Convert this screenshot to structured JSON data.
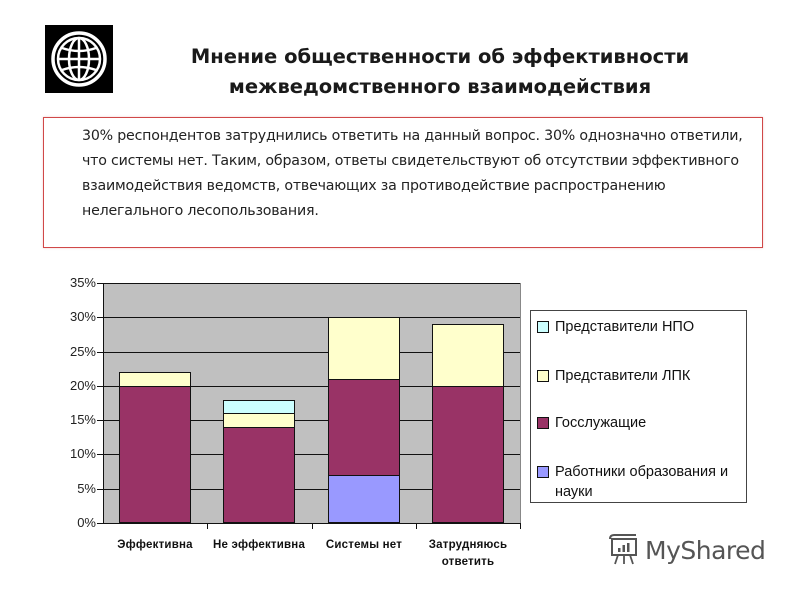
{
  "slide": {
    "title_line1": "Мнение общественности  об эффективности",
    "title_line2": "межведомственного взаимодействия",
    "body_text": "30% респондентов затруднились ответить на данный вопрос.  30% однозначно ответили, что системы нет. Таким, образом, ответы свидетельствуют об отсутствии эффективного взаимодействия ведомств, отвечающих за противодействие распространению нелегального лесопользования.",
    "logo_icon": "globe-icon",
    "watermark": "MyShared",
    "watermark_icon": "presentation-board-icon"
  },
  "colors": {
    "npo": "#ccffff",
    "lpk": "#ffffcc",
    "gos": "#993366",
    "edu": "#9999ff",
    "plot_bg": "#c0c0c0",
    "border_red": "#d04848"
  },
  "chart_data": {
    "type": "bar",
    "stacked": true,
    "title": "",
    "xlabel": "",
    "ylabel": "",
    "ylim": [
      0,
      35
    ],
    "yticks": [
      "0%",
      "5%",
      "10%",
      "15%",
      "20%",
      "25%",
      "30%",
      "35%"
    ],
    "grid": true,
    "legend_position": "right",
    "categories": [
      "Эффективна",
      "Не эффективна",
      "Системы нет",
      "Затрудняюсь ответить"
    ],
    "series": [
      {
        "name": "Работники образования и науки",
        "color": "#9999ff",
        "values": [
          0,
          0,
          7,
          0
        ]
      },
      {
        "name": "Госслужащие",
        "color": "#993366",
        "values": [
          20,
          14,
          14,
          20
        ]
      },
      {
        "name": "Представители ЛПК",
        "color": "#ffffcc",
        "values": [
          2,
          2,
          9,
          9
        ]
      },
      {
        "name": "Представители НПО",
        "color": "#ccffff",
        "values": [
          0,
          2,
          0,
          0
        ]
      }
    ],
    "totals": [
      22,
      18,
      30,
      29
    ]
  },
  "legend": {
    "items": [
      {
        "label": "Представители НПО",
        "color": "#ccffff"
      },
      {
        "label": "Представители ЛПК",
        "color": "#ffffcc"
      },
      {
        "label": "Госслужащие",
        "color": "#993366"
      },
      {
        "label": "Работники образования и науки",
        "color": "#9999ff"
      }
    ]
  },
  "xlabels": {
    "c0": "Эффективна",
    "c1": "Не эффективна",
    "c2": "Системы нет",
    "c3a": "Затрудняюсь",
    "c3b": "ответить"
  }
}
